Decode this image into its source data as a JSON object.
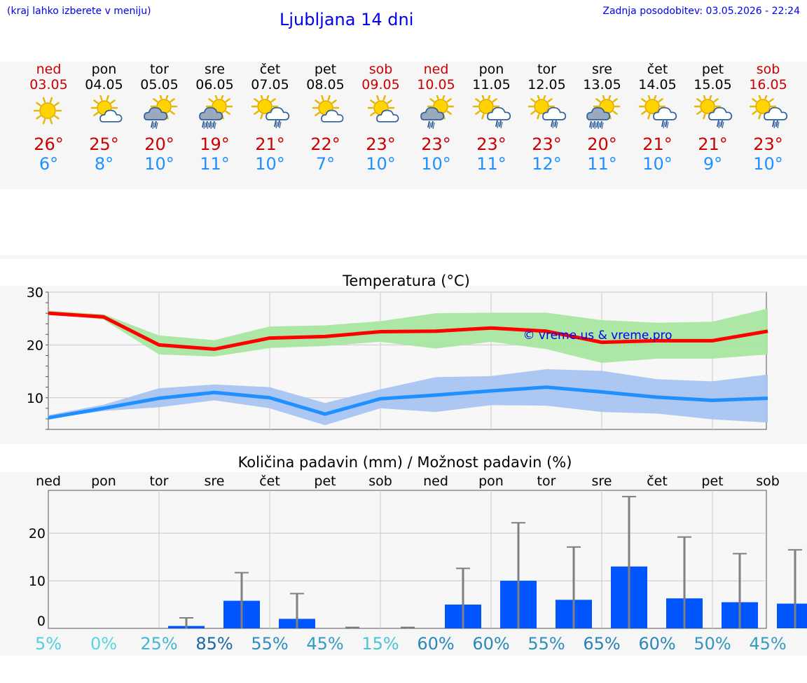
{
  "header": {
    "hint": "(kraj lahko izberete v meniju)",
    "title": "Ljubljana 14 dni",
    "updated": "Zadnja posodobitev: 03.05.2026 - 22:24"
  },
  "colors": {
    "link": "#0000ee",
    "max_temp": "#ff0000",
    "min_temp": "#1e90ff",
    "max_band": "#a8e6a0",
    "min_band": "#a9c4f2",
    "bar": "#0055ff",
    "error_bar": "#808080",
    "weekend": "#cc0000"
  },
  "days": [
    {
      "name": "ned",
      "date": "03.05",
      "weekend": true,
      "icon": "sun-icon",
      "tmax": "26°",
      "tmin": "6°"
    },
    {
      "name": "pon",
      "date": "04.05",
      "weekend": false,
      "icon": "sun-cloud-icon",
      "tmax": "25°",
      "tmin": "8°"
    },
    {
      "name": "tor",
      "date": "05.05",
      "weekend": false,
      "icon": "sun-rain-icon",
      "tmax": "20°",
      "tmin": "10°"
    },
    {
      "name": "sre",
      "date": "06.05",
      "weekend": false,
      "icon": "sun-heavy-rain-icon",
      "tmax": "19°",
      "tmin": "11°"
    },
    {
      "name": "čet",
      "date": "07.05",
      "weekend": false,
      "icon": "sun-cloud-rain-icon",
      "tmax": "21°",
      "tmin": "10°"
    },
    {
      "name": "pet",
      "date": "08.05",
      "weekend": false,
      "icon": "sun-cloud-icon",
      "tmax": "22°",
      "tmin": "7°"
    },
    {
      "name": "sob",
      "date": "09.05",
      "weekend": true,
      "icon": "sun-cloud-icon",
      "tmax": "23°",
      "tmin": "10°"
    },
    {
      "name": "ned",
      "date": "10.05",
      "weekend": true,
      "icon": "sun-rain-icon",
      "tmax": "23°",
      "tmin": "10°"
    },
    {
      "name": "pon",
      "date": "11.05",
      "weekend": false,
      "icon": "sun-cloud-rain-icon",
      "tmax": "23°",
      "tmin": "11°"
    },
    {
      "name": "tor",
      "date": "12.05",
      "weekend": false,
      "icon": "sun-cloud-rain-icon",
      "tmax": "23°",
      "tmin": "12°"
    },
    {
      "name": "sre",
      "date": "13.05",
      "weekend": false,
      "icon": "sun-heavy-rain-icon",
      "tmax": "20°",
      "tmin": "11°"
    },
    {
      "name": "čet",
      "date": "14.05",
      "weekend": false,
      "icon": "sun-cloud-rain-icon",
      "tmax": "21°",
      "tmin": "10°"
    },
    {
      "name": "pet",
      "date": "15.05",
      "weekend": false,
      "icon": "sun-cloud-rain-icon",
      "tmax": "21°",
      "tmin": "9°"
    },
    {
      "name": "sob",
      "date": "16.05",
      "weekend": true,
      "icon": "sun-cloud-rain-icon",
      "tmax": "23°",
      "tmin": "10°"
    }
  ],
  "chart_data": [
    {
      "type": "line",
      "title": "Temperatura (°C)",
      "watermark": "© vreme.us & vreme.pro",
      "x": [
        "03.05",
        "04.05",
        "05.05",
        "06.05",
        "07.05",
        "08.05",
        "09.05",
        "10.05",
        "11.05",
        "12.05",
        "13.05",
        "14.05",
        "15.05",
        "16.05"
      ],
      "ylim": [
        4,
        30
      ],
      "yticks": [
        10,
        20,
        30
      ],
      "grid": true,
      "series": [
        {
          "key": "max",
          "values": [
            26,
            25.3,
            20,
            19.2,
            21.3,
            21.6,
            22.5,
            22.6,
            23.2,
            22.6,
            20.5,
            20.8,
            20.8,
            22.6
          ],
          "band_low": [
            26,
            24.8,
            18.2,
            17.8,
            19.4,
            19.8,
            20.6,
            19.3,
            20.6,
            19.2,
            16.6,
            17.4,
            17.4,
            18.2
          ],
          "band_high": [
            26.5,
            25.8,
            21.8,
            20.9,
            23.5,
            23.7,
            24.5,
            26.0,
            26.1,
            26.1,
            24.7,
            24.2,
            24.4,
            26.9
          ]
        },
        {
          "key": "min",
          "values": [
            6.2,
            8.0,
            9.9,
            11.0,
            10.0,
            6.9,
            9.8,
            10.5,
            11.3,
            12.0,
            11.1,
            10.1,
            9.5,
            9.9
          ],
          "band_low": [
            6.0,
            7.5,
            8.2,
            9.5,
            8.0,
            4.8,
            8.0,
            7.3,
            8.6,
            8.5,
            7.3,
            7.0,
            5.9,
            5.3
          ],
          "band_high": [
            6.7,
            8.7,
            11.8,
            12.5,
            12.0,
            9.0,
            11.6,
            13.9,
            14.1,
            15.4,
            15.1,
            13.5,
            13.1,
            14.4
          ]
        }
      ]
    },
    {
      "type": "bar",
      "title": "Količina padavin (mm) / Možnost padavin (%)",
      "categories": [
        "ned",
        "pon",
        "tor",
        "sre",
        "čet",
        "pet",
        "sob",
        "ned",
        "pon",
        "tor",
        "sre",
        "čet",
        "pet",
        "sob"
      ],
      "values": [
        0,
        0,
        0.5,
        5.8,
        2.0,
        0,
        0,
        5.0,
        10.0,
        6.0,
        13.0,
        6.3,
        5.5,
        5.2
      ],
      "error_high": [
        0,
        0,
        2.2,
        11.7,
        7.3,
        0.2,
        0.2,
        12.6,
        22.2,
        17.1,
        27.7,
        19.2,
        15.7,
        16.5
      ],
      "ylim": [
        0,
        29
      ],
      "yticks": [
        0,
        10,
        20
      ],
      "grid": true,
      "probability": [
        "5%",
        "0%",
        "25%",
        "85%",
        "55%",
        "45%",
        "15%",
        "60%",
        "60%",
        "55%",
        "65%",
        "60%",
        "50%",
        "45%"
      ],
      "probability_values": [
        5,
        0,
        25,
        85,
        55,
        45,
        15,
        60,
        60,
        55,
        65,
        60,
        50,
        45
      ]
    }
  ]
}
